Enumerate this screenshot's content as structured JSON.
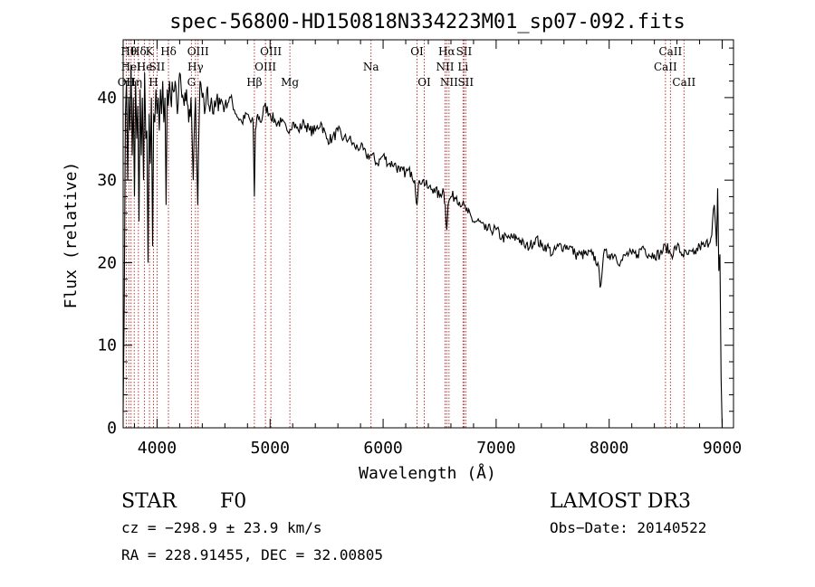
{
  "chart_data": {
    "type": "line",
    "title": "spec-56800-HD150818N334223M01_sp07-092.fits",
    "xlabel": "Wavelength (Å)",
    "ylabel": "Flux (relative)",
    "xlim": [
      3700,
      9100
    ],
    "ylim": [
      0,
      47
    ],
    "xticks": [
      4000,
      5000,
      6000,
      7000,
      8000,
      9000
    ],
    "yticks": [
      0,
      10,
      20,
      30,
      40
    ],
    "series": [
      {
        "name": "flux",
        "x": [
          3700,
          3710,
          3720,
          3730,
          3740,
          3750,
          3760,
          3770,
          3780,
          3790,
          3800,
          3810,
          3820,
          3830,
          3840,
          3850,
          3860,
          3870,
          3880,
          3890,
          3900,
          3910,
          3920,
          3930,
          3940,
          3950,
          3960,
          3970,
          3980,
          3990,
          4000,
          4010,
          4020,
          4030,
          4040,
          4050,
          4060,
          4070,
          4080,
          4090,
          4100,
          4110,
          4120,
          4140,
          4160,
          4180,
          4200,
          4220,
          4240,
          4260,
          4280,
          4300,
          4320,
          4340,
          4360,
          4380,
          4400,
          4420,
          4440,
          4460,
          4480,
          4500,
          4550,
          4600,
          4650,
          4700,
          4750,
          4800,
          4830,
          4850,
          4861,
          4870,
          4890,
          4920,
          4950,
          5000,
          5050,
          5100,
          5150,
          5200,
          5250,
          5300,
          5350,
          5400,
          5450,
          5500,
          5550,
          5600,
          5650,
          5700,
          5750,
          5800,
          5850,
          5900,
          5950,
          6000,
          6050,
          6100,
          6150,
          6200,
          6250,
          6280,
          6300,
          6320,
          6350,
          6400,
          6450,
          6500,
          6530,
          6550,
          6563,
          6575,
          6600,
          6650,
          6700,
          6750,
          6800,
          6850,
          6900,
          6950,
          7000,
          7050,
          7100,
          7150,
          7200,
          7250,
          7300,
          7350,
          7400,
          7450,
          7500,
          7550,
          7600,
          7650,
          7700,
          7750,
          7800,
          7850,
          7900,
          7920,
          7950,
          8000,
          8050,
          8100,
          8150,
          8200,
          8250,
          8300,
          8350,
          8400,
          8450,
          8500,
          8550,
          8600,
          8650,
          8700,
          8750,
          8800,
          8850,
          8900,
          8930,
          8950,
          8960,
          8970,
          8980,
          8990,
          9000
        ],
        "y": [
          2,
          15,
          38,
          42,
          30,
          40,
          36,
          44,
          33,
          40,
          28,
          42,
          35,
          39,
          25,
          41,
          33,
          40,
          30,
          43,
          35,
          36,
          20,
          38,
          32,
          40,
          22,
          38,
          37,
          41,
          38,
          40,
          36,
          41,
          38,
          42,
          37,
          40,
          27,
          41,
          39,
          42,
          40,
          41,
          42,
          38,
          43,
          40,
          39,
          41,
          37,
          40,
          30,
          40,
          27,
          42,
          40,
          38,
          41,
          39,
          40,
          38,
          40,
          39,
          40,
          38,
          37,
          38,
          37,
          37,
          28,
          36,
          38,
          37,
          39,
          38,
          37,
          37,
          36,
          37,
          36,
          37,
          36,
          36,
          37,
          35,
          35,
          36,
          35,
          35,
          34,
          34,
          33,
          33,
          32,
          33,
          32,
          32,
          31,
          31,
          31,
          30,
          27,
          30,
          30,
          29,
          29,
          28,
          29,
          27,
          24,
          27,
          28,
          28,
          27,
          26,
          25,
          25,
          24,
          24,
          24,
          23,
          23,
          23,
          23,
          22,
          22,
          23,
          22,
          22,
          21,
          22,
          22,
          22,
          21,
          21,
          21,
          21,
          20,
          17,
          21,
          21,
          21,
          20,
          21,
          21,
          21,
          22,
          21,
          21,
          21,
          22,
          21,
          22,
          21,
          21,
          21,
          22,
          22,
          23,
          27,
          22,
          29,
          19,
          21,
          6,
          0
        ]
      }
    ],
    "line_markers": [
      {
        "wave": 3727,
        "label": "OII",
        "row": 2
      },
      {
        "wave": 3750,
        "label": "Hθ",
        "row": 0
      },
      {
        "wave": 3770,
        "label": "HeI",
        "row": 1
      },
      {
        "wave": 3798,
        "label": "Hη",
        "row": 2
      },
      {
        "wave": 3835,
        "label": "Hδ",
        "row": 0
      },
      {
        "wave": 3889,
        "label": "He",
        "row": 1
      },
      {
        "wave": 3933,
        "label": "K",
        "row": 0
      },
      {
        "wave": 3968,
        "label": "H",
        "row": 2
      },
      {
        "wave": 4000,
        "label": "SII",
        "row": 1
      },
      {
        "wave": 4101,
        "label": "Hδ",
        "row": 0
      },
      {
        "wave": 4304,
        "label": "G",
        "row": 2
      },
      {
        "wave": 4340,
        "label": "Hγ",
        "row": 1
      },
      {
        "wave": 4363,
        "label": "OIII",
        "row": 0
      },
      {
        "wave": 4861,
        "label": "Hβ",
        "row": 2
      },
      {
        "wave": 4959,
        "label": "OIII",
        "row": 1
      },
      {
        "wave": 5007,
        "label": "OIII",
        "row": 0
      },
      {
        "wave": 5175,
        "label": "Mg",
        "row": 2
      },
      {
        "wave": 5893,
        "label": "Na",
        "row": 1
      },
      {
        "wave": 6300,
        "label": "OI",
        "row": 0
      },
      {
        "wave": 6364,
        "label": "OI",
        "row": 2
      },
      {
        "wave": 6548,
        "label": "NII",
        "row": 1
      },
      {
        "wave": 6563,
        "label": "Hα",
        "row": 0
      },
      {
        "wave": 6583,
        "label": "NII",
        "row": 2
      },
      {
        "wave": 6707,
        "label": "Li",
        "row": 1
      },
      {
        "wave": 6716,
        "label": "SII",
        "row": 0
      },
      {
        "wave": 6731,
        "label": "SII",
        "row": 2
      },
      {
        "wave": 8498,
        "label": "CaII",
        "row": 1
      },
      {
        "wave": 8542,
        "label": "CaII",
        "row": 0
      },
      {
        "wave": 8662,
        "label": "CaII",
        "row": 2
      }
    ]
  },
  "info": {
    "object_class": "STAR",
    "subclass": "F0",
    "survey": "LAMOST DR3",
    "cz": "cz = −298.9 ± 23.9 km/s",
    "obs_date": "Obs−Date: 20140522",
    "coords": "RA = 228.91455, DEC =  32.00805"
  },
  "colors": {
    "spectrum": "#000000",
    "marker": "#b22222"
  }
}
